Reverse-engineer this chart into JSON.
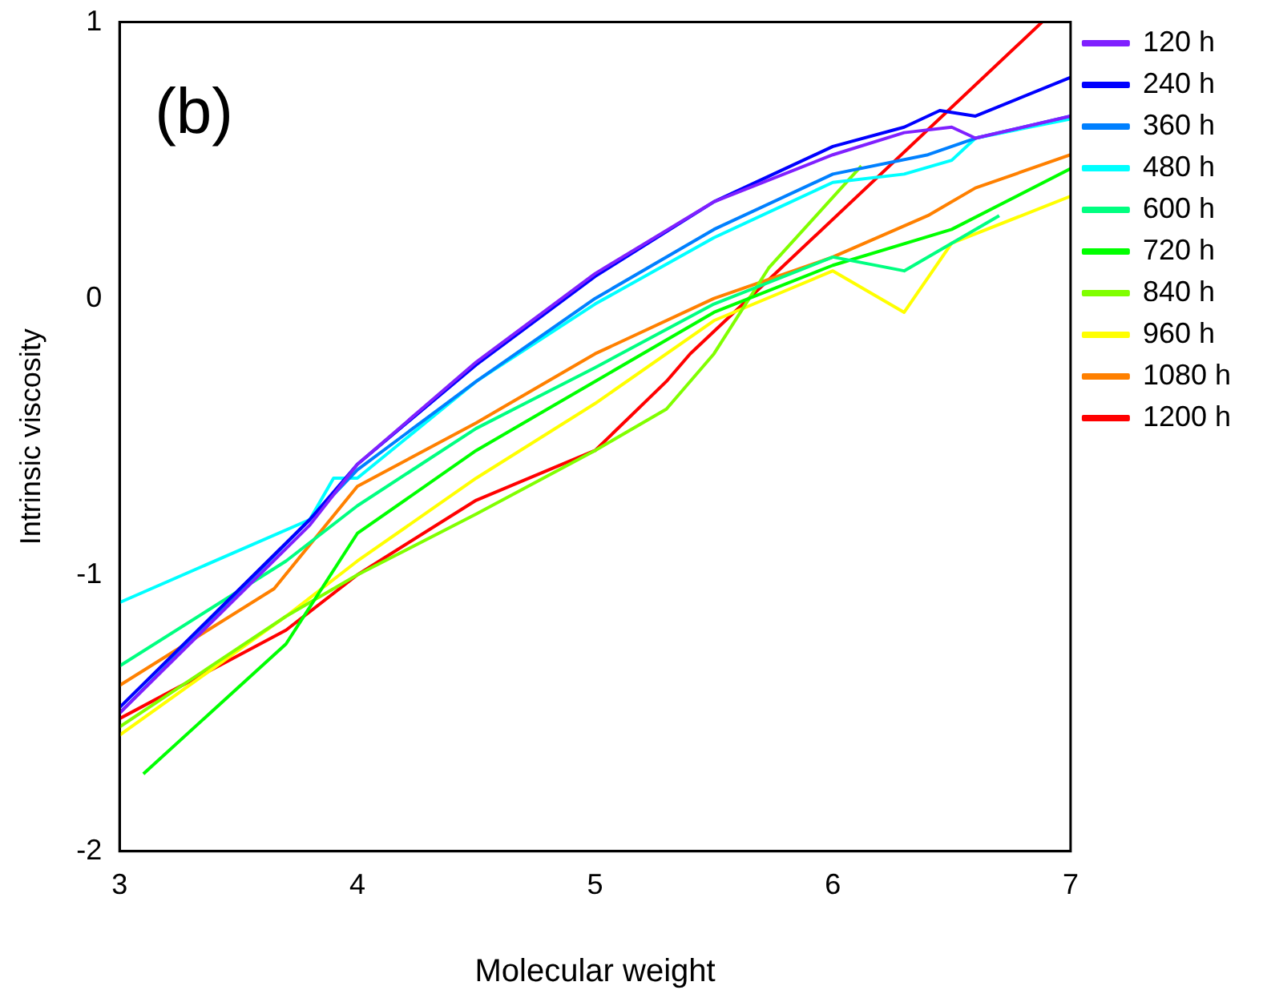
{
  "chart_data": {
    "type": "line",
    "xlabel": "Molecular weight",
    "ylabel": "Intrinsic viscosity",
    "annotations": [
      "(b)"
    ],
    "xlim": [
      3,
      7
    ],
    "ylim": [
      -2,
      1
    ],
    "xticks": [
      3,
      4,
      5,
      6,
      7
    ],
    "yticks": [
      -2,
      -1,
      0,
      1
    ],
    "grid": false,
    "legend": "right",
    "marker": "none",
    "line_style": "solid",
    "series": [
      {
        "name": "120 h",
        "color": "#8020ff",
        "x": [
          3,
          3.8,
          4,
          4.5,
          5,
          5.5,
          6,
          6.3,
          6.5,
          6.6,
          7
        ],
        "values": [
          -1.5,
          -0.82,
          -0.6,
          -0.23,
          0.09,
          0.35,
          0.52,
          0.6,
          0.62,
          0.58,
          0.66
        ]
      },
      {
        "name": "240 h",
        "color": "#0000ff",
        "x": [
          3,
          3.8,
          4,
          4.5,
          5,
          5.5,
          6,
          6.3,
          6.45,
          6.6,
          7
        ],
        "values": [
          -1.48,
          -0.8,
          -0.6,
          -0.24,
          0.08,
          0.35,
          0.55,
          0.62,
          0.68,
          0.66,
          0.8
        ]
      },
      {
        "name": "360 h",
        "color": "#0080ff",
        "x": [
          3,
          3.8,
          4,
          4.5,
          5,
          5.5,
          6,
          6.4,
          6.6,
          7
        ],
        "values": [
          -1.5,
          -0.8,
          -0.62,
          -0.3,
          0.0,
          0.25,
          0.45,
          0.52,
          0.58,
          0.66
        ]
      },
      {
        "name": "480 h",
        "color": "#00ffff",
        "x": [
          3,
          3.8,
          3.9,
          4,
          4.5,
          5,
          5.5,
          6,
          6.3,
          6.5,
          6.6,
          7
        ],
        "values": [
          -1.1,
          -0.8,
          -0.65,
          -0.65,
          -0.3,
          -0.02,
          0.22,
          0.42,
          0.45,
          0.5,
          0.58,
          0.65
        ]
      },
      {
        "name": "600 h",
        "color": "#00ff80",
        "x": [
          3,
          3.7,
          4,
          4.5,
          5,
          5.5,
          6,
          6.3,
          6.5,
          6.7
        ],
        "values": [
          -1.33,
          -0.95,
          -0.75,
          -0.47,
          -0.25,
          -0.02,
          0.15,
          0.1,
          0.2,
          0.3
        ]
      },
      {
        "name": "720 h",
        "color": "#00ff00",
        "x": [
          3.1,
          3.7,
          4,
          4.5,
          5,
          5.5,
          6,
          6.5,
          7
        ],
        "values": [
          -1.72,
          -1.25,
          -0.85,
          -0.55,
          -0.3,
          -0.05,
          0.12,
          0.25,
          0.47
        ]
      },
      {
        "name": "840 h",
        "color": "#80ff00",
        "x": [
          3,
          3.7,
          4,
          4.5,
          5,
          5.3,
          5.5,
          5.73,
          6.12
        ],
        "values": [
          -1.55,
          -1.15,
          -1.0,
          -0.78,
          -0.55,
          -0.4,
          -0.2,
          0.11,
          0.48
        ]
      },
      {
        "name": "960 h",
        "color": "#ffff00",
        "x": [
          3,
          3.7,
          4,
          4.5,
          5,
          5.5,
          6,
          6.3,
          6.5,
          7
        ],
        "values": [
          -1.58,
          -1.15,
          -0.95,
          -0.65,
          -0.38,
          -0.08,
          0.1,
          -0.05,
          0.2,
          0.37
        ]
      },
      {
        "name": "1080 h",
        "color": "#ff8000",
        "x": [
          3,
          3.65,
          4,
          4.5,
          5,
          5.5,
          6,
          6.4,
          6.6,
          7
        ],
        "values": [
          -1.4,
          -1.05,
          -0.68,
          -0.45,
          -0.2,
          0.0,
          0.15,
          0.3,
          0.4,
          0.52
        ]
      },
      {
        "name": "1200 h",
        "color": "#ff0000",
        "x": [
          3,
          3.7,
          4,
          4.5,
          5,
          5.3,
          5.4,
          6.88
        ],
        "values": [
          -1.52,
          -1.2,
          -1.0,
          -0.73,
          -0.55,
          -0.3,
          -0.2,
          1.0
        ]
      }
    ]
  }
}
